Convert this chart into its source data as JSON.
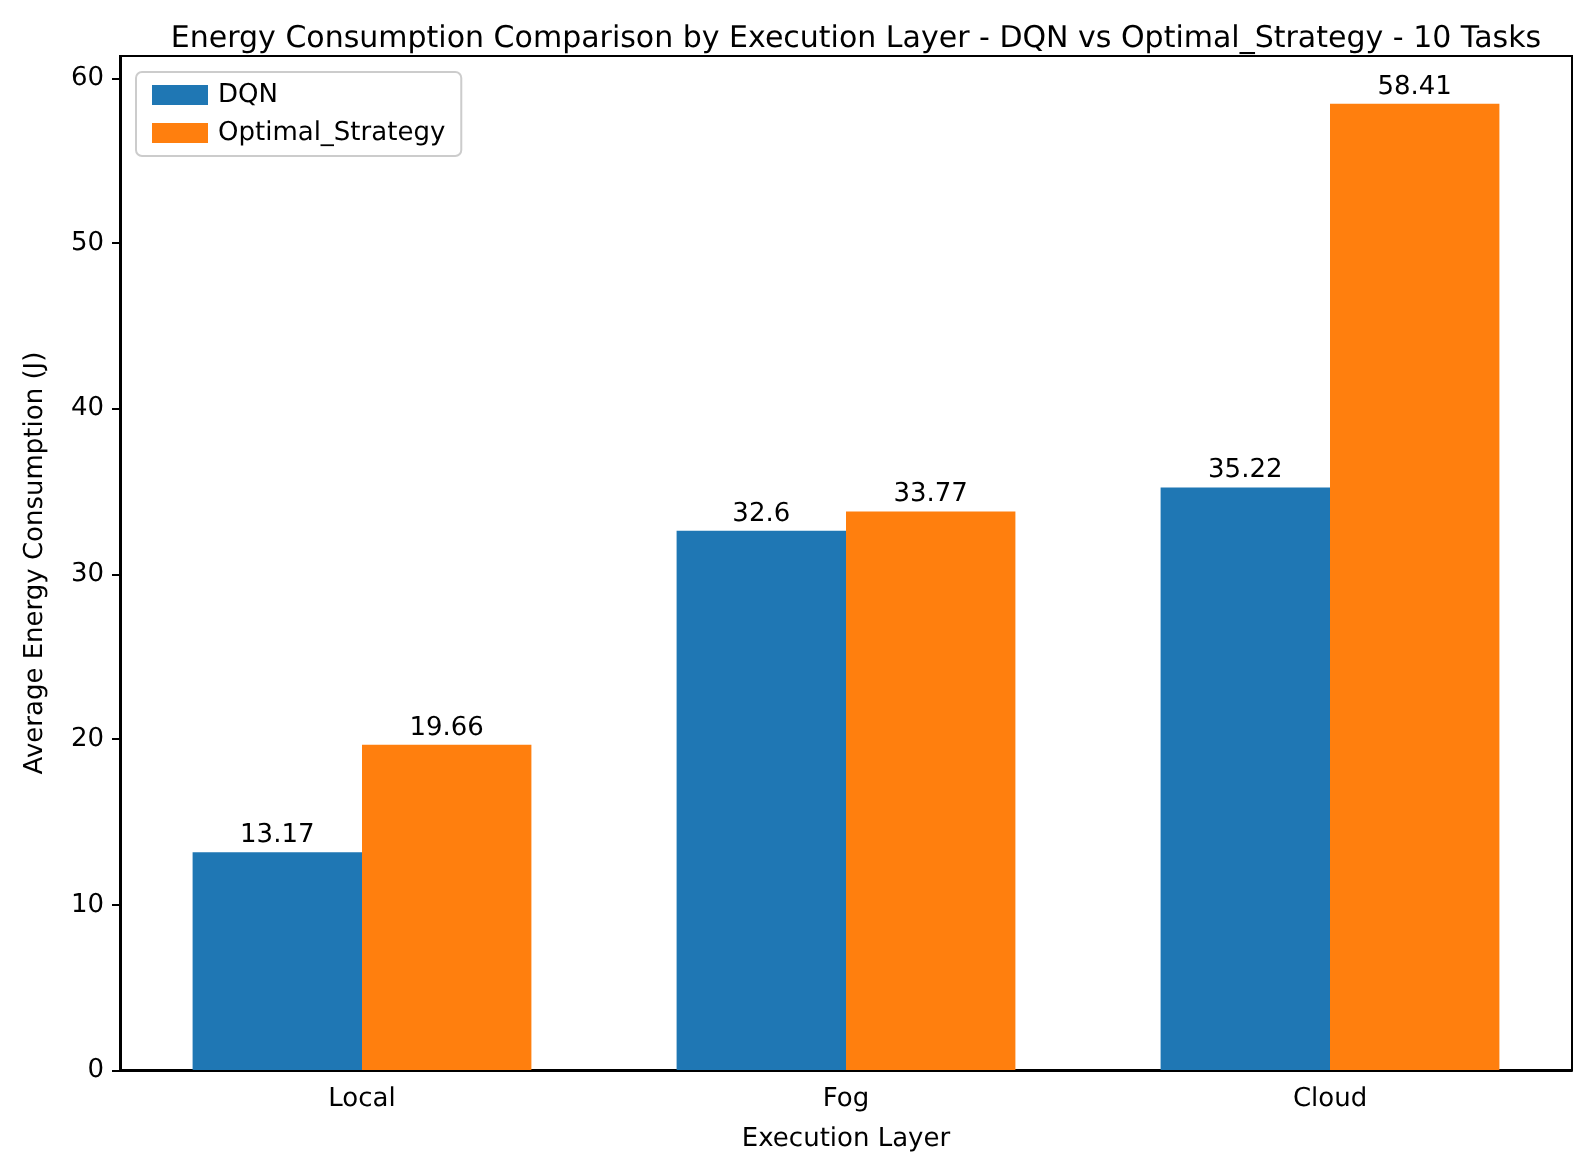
{
  "chart_data": {
    "type": "bar",
    "title": "Energy Consumption Comparison by Execution Layer - DQN vs Optimal_Strategy - 10 Tasks",
    "xlabel": "Execution Layer",
    "ylabel": "Average Energy Consumption (J)",
    "categories": [
      "Local",
      "Fog",
      "Cloud"
    ],
    "series": [
      {
        "name": "DQN",
        "color": "#1f77b4",
        "values": [
          13.17,
          32.6,
          35.22
        ]
      },
      {
        "name": "Optimal_Strategy",
        "color": "#ff7f0e",
        "values": [
          19.66,
          33.77,
          58.41
        ]
      }
    ],
    "ylim": [
      0,
      61.3
    ],
    "yticks": [
      0,
      10,
      20,
      30,
      40,
      50,
      60
    ],
    "grid": false,
    "legend": "top left",
    "data_labels": true
  }
}
